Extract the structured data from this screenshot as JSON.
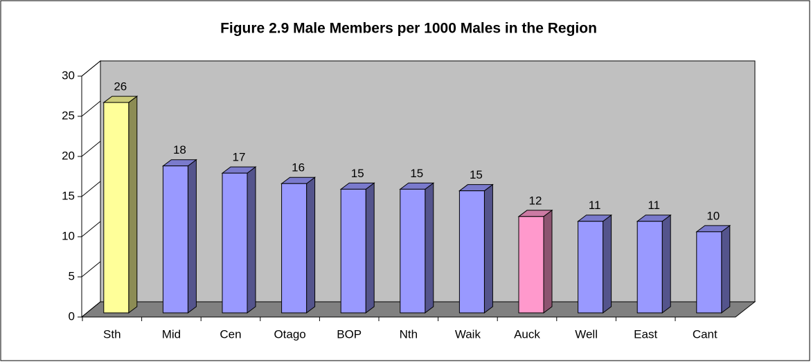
{
  "chart_data": {
    "type": "bar3d",
    "title": "Figure 2.9 Male Members per 1000 Males in the Region",
    "categories": [
      "Sth",
      "Mid",
      "Cen",
      "Otago",
      "BOP",
      "Nth",
      "Waik",
      "Auck",
      "Well",
      "East",
      "Cant"
    ],
    "values": [
      26.2,
      18.3,
      17.4,
      16.1,
      15.4,
      15.4,
      15.2,
      12.0,
      11.4,
      11.4,
      10.1
    ],
    "value_labels": [
      "26",
      "18",
      "17",
      "16",
      "15",
      "15",
      "15",
      "12",
      "11",
      "11",
      "10"
    ],
    "colors": [
      "#ffff99",
      "#9999ff",
      "#9999ff",
      "#9999ff",
      "#9999ff",
      "#9999ff",
      "#9999ff",
      "#ff99cc",
      "#9999ff",
      "#9999ff",
      "#9999ff"
    ],
    "ylim": [
      0,
      30
    ],
    "yticks": [
      0,
      5,
      10,
      15,
      20,
      25,
      30
    ],
    "grid": false
  }
}
